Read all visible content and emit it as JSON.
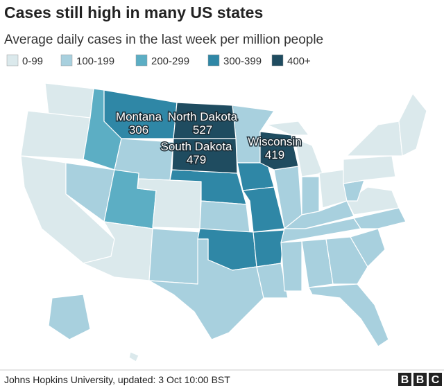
{
  "title": "Cases still high in many US states",
  "subtitle": "Average daily cases in the last week per million people",
  "legend": [
    {
      "label": "0-99",
      "color": "#dbe9ec"
    },
    {
      "label": "100-199",
      "color": "#a8d0de"
    },
    {
      "label": "200-299",
      "color": "#5caec4"
    },
    {
      "label": "300-399",
      "color": "#2f87a6"
    },
    {
      "label": "400+",
      "color": "#1f4c60"
    }
  ],
  "labels": [
    {
      "state": "Montana",
      "value": 306,
      "bin": 3
    },
    {
      "state": "North Dakota",
      "value": 527,
      "bin": 4
    },
    {
      "state": "South Dakota",
      "value": 479,
      "bin": 4
    },
    {
      "state": "Wisconsin",
      "value": 419,
      "bin": 4
    }
  ],
  "source": "Johns Hopkins University, updated: 3 Oct 10:00 BST",
  "logo": [
    "B",
    "B",
    "C"
  ]
}
